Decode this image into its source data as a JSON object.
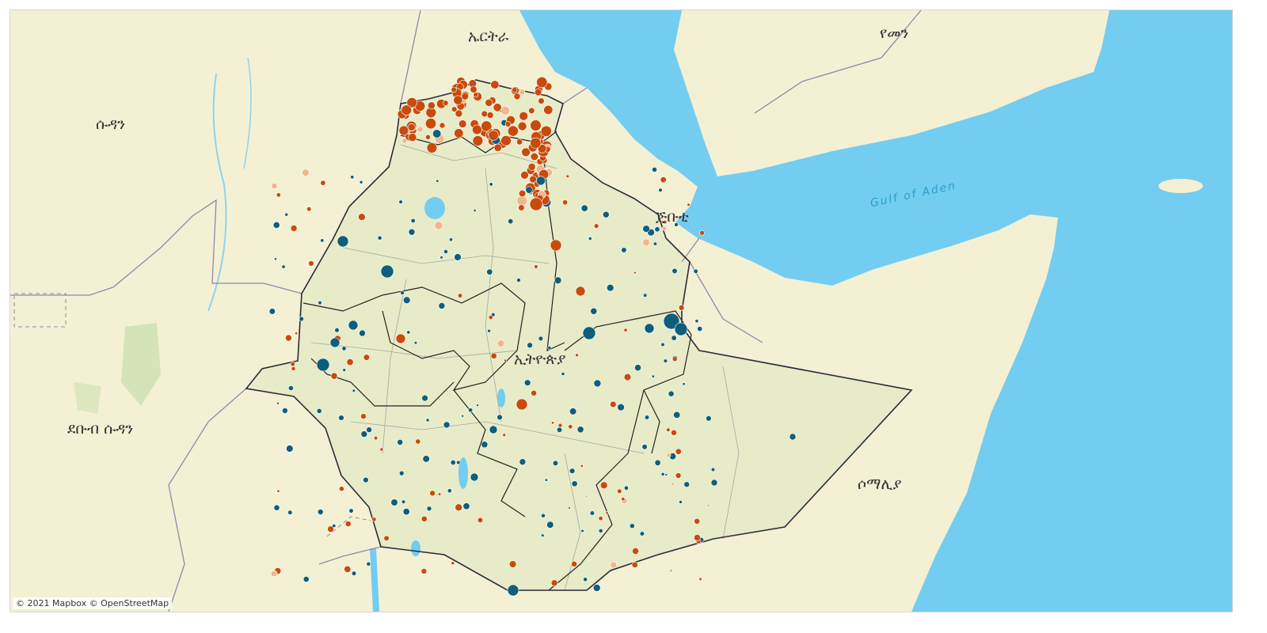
{
  "map": {
    "labels": {
      "eritrea": "ኤርትራ",
      "yemen": "የመን",
      "sudan": "ሱዳን",
      "djibouti": "ጅቡቲ",
      "gulf_of_aden": "Gulf of Aden",
      "ethiopia": "ኢትዮጵያ",
      "south_sudan": "ደቡብ ሱዳን",
      "somalia": "ሶማሊያ"
    },
    "attribution": "© 2021 Mapbox © OpenStreetMap",
    "colors": {
      "land": "#f4f0d4",
      "ethiopia_land": "#e9ecc9",
      "water": "#73cdf0",
      "marker_orange": "#c84b0c",
      "marker_blue": "#0f5e7c",
      "marker_peach": "#f2b58c",
      "border": "#222222"
    },
    "marker_categories": [
      "orange",
      "blue",
      "peach"
    ]
  }
}
